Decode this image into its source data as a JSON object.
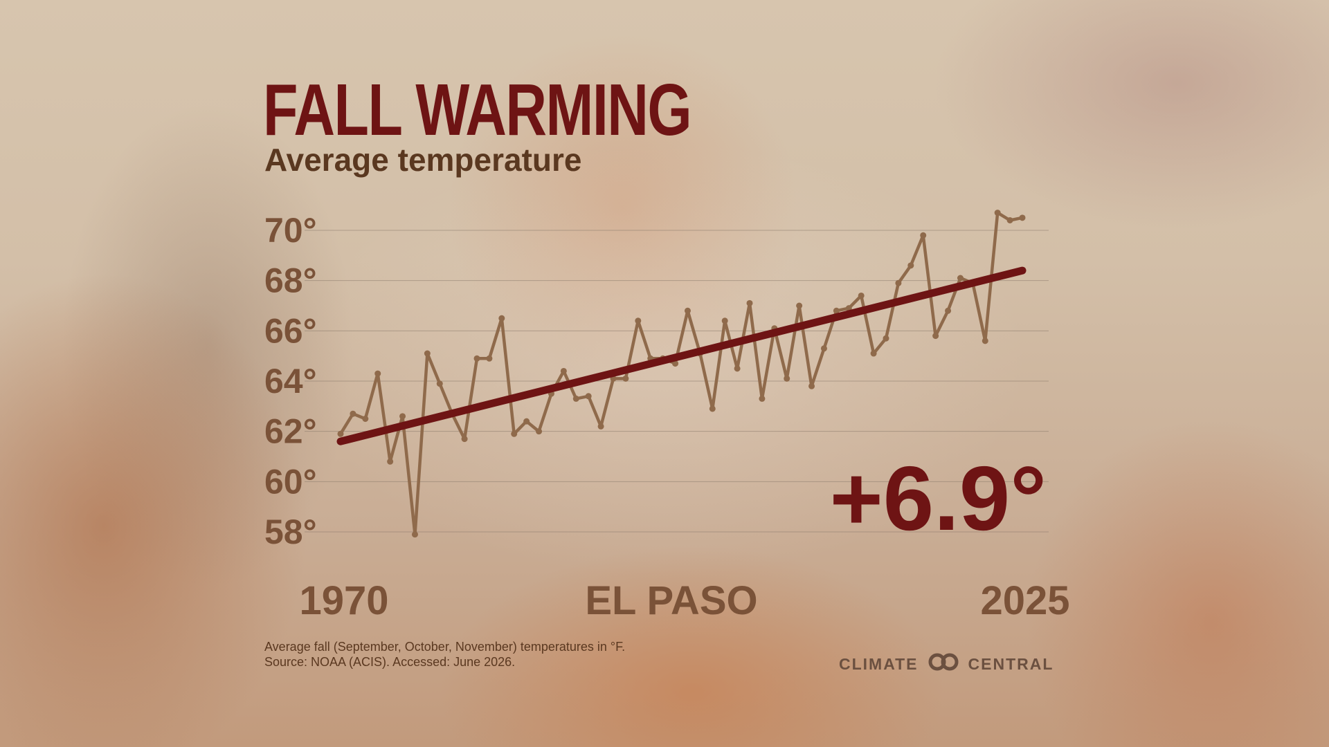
{
  "header": {
    "title": "FALL WARMING",
    "subtitle": "Average temperature"
  },
  "footer": {
    "note": "Average fall (September, October, November) temperatures in °F.",
    "source": "Source: NOAA (ACIS). Accessed: June 2026."
  },
  "brand": {
    "left": "CLIMATE",
    "right": "CENTRAL",
    "logo_icon": "linked-rings-icon"
  },
  "colors": {
    "title": "#6e1414",
    "data_line": "#8f6a4b",
    "trend_line": "#6e1414",
    "labels": "#7a5238",
    "gridline": "#8a7a6c"
  },
  "chart_data": {
    "type": "line",
    "title": "FALL WARMING",
    "subtitle": "Average temperature",
    "location": "EL PASO",
    "change_label": "+6.9°",
    "x_start_label": "1970",
    "x_end_label": "2025",
    "xlim": [
      1970,
      2025
    ],
    "ylim": [
      57,
      71
    ],
    "y_ticks": [
      58,
      60,
      62,
      64,
      66,
      68,
      70
    ],
    "y_tick_labels": [
      "58°",
      "60°",
      "62°",
      "64°",
      "66°",
      "68°",
      "70°"
    ],
    "grid": true,
    "units": "°F",
    "series": [
      {
        "x": [
          1970,
          1971,
          1972,
          1973,
          1974,
          1975,
          1976,
          1977,
          1978,
          1979,
          1980,
          1981,
          1982,
          1983,
          1984,
          1985,
          1986,
          1987,
          1988,
          1989,
          1990,
          1991,
          1992,
          1993,
          1994,
          1995,
          1996,
          1997,
          1998,
          1999,
          2000,
          2001,
          2002,
          2003,
          2004,
          2005,
          2006,
          2007,
          2008,
          2009,
          2010,
          2011,
          2012,
          2013,
          2014,
          2015,
          2016,
          2017,
          2018,
          2019,
          2020,
          2021,
          2022,
          2023,
          2024,
          2025
        ],
        "values": [
          61.9,
          62.7,
          62.5,
          64.3,
          60.8,
          62.6,
          57.9,
          65.1,
          63.9,
          62.7,
          61.7,
          64.9,
          64.9,
          66.5,
          61.9,
          62.4,
          62.0,
          63.5,
          64.4,
          63.3,
          63.4,
          62.2,
          64.1,
          64.1,
          66.4,
          64.9,
          64.9,
          64.7,
          66.8,
          65.1,
          62.9,
          66.4,
          64.5,
          67.1,
          63.3,
          66.1,
          64.1,
          67.0,
          63.8,
          65.3,
          66.8,
          66.9,
          67.4,
          65.1,
          65.7,
          67.9,
          68.6,
          69.8,
          65.8,
          66.8,
          68.1,
          67.9,
          65.6,
          70.7,
          70.4,
          70.5
        ]
      }
    ],
    "trend": {
      "x": [
        1970,
        2025
      ],
      "values": [
        61.6,
        68.4
      ]
    }
  }
}
